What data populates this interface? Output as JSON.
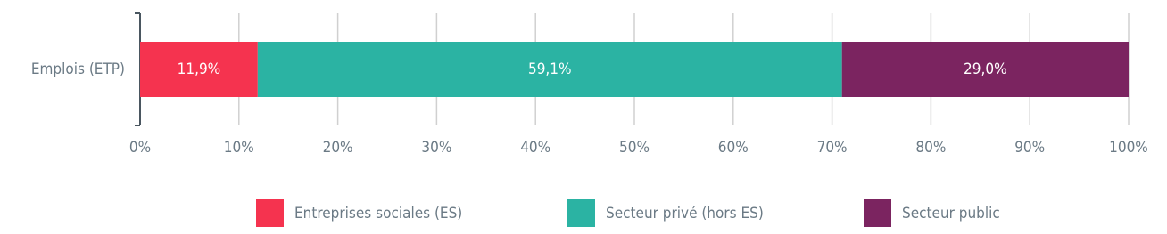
{
  "chart_data": {
    "type": "stacked-bar-horizontal",
    "categories": [
      "Emplois (ETP)"
    ],
    "series": [
      {
        "name": "Entreprises sociales (ES)",
        "color": "#f5334f",
        "values": [
          11.9
        ],
        "value_labels": [
          "11,9%"
        ]
      },
      {
        "name": "Secteur privé (hors ES)",
        "color": "#2bb3a3",
        "values": [
          59.1
        ],
        "value_labels": [
          "59,1%"
        ]
      },
      {
        "name": "Secteur public",
        "color": "#7b2460",
        "values": [
          29.0
        ],
        "value_labels": [
          "29,0%"
        ]
      }
    ],
    "xlim": [
      0,
      100
    ],
    "xticks": [
      {
        "value": 0,
        "label": "0%"
      },
      {
        "value": 10,
        "label": "10%"
      },
      {
        "value": 20,
        "label": "20%"
      },
      {
        "value": 30,
        "label": "30%"
      },
      {
        "value": 40,
        "label": "40%"
      },
      {
        "value": 50,
        "label": "50%"
      },
      {
        "value": 60,
        "label": "60%"
      },
      {
        "value": 70,
        "label": "70%"
      },
      {
        "value": 80,
        "label": "80%"
      },
      {
        "value": 90,
        "label": "90%"
      },
      {
        "value": 100,
        "label": "100%"
      }
    ],
    "grid": true,
    "legend": "bottom"
  }
}
